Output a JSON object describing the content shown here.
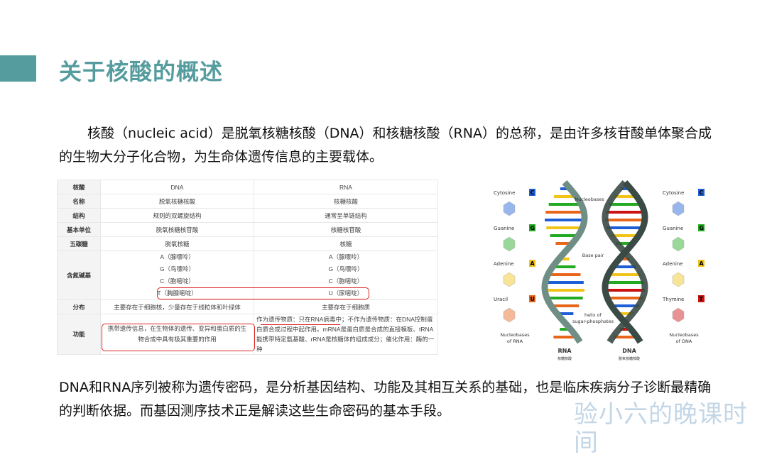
{
  "title": "关于核酸的概述",
  "intro": "核酸（nucleic acid）是脱氧核糖核酸（DNA）和核糖核酸（RNA）的总称，是由许多核苷酸单体聚合成的生物大分子化合物，为生命体遗传信息的主要载体。",
  "conclusion": "DNA和RNA序列被称为遗传密码，是分析基因结构、功能及其相互关系的基础，也是临床疾病分子诊断最精确的判断依据。而基因测序技术正是解读这些生命密码的基本手段。",
  "watermark": "验小六的晚课时间",
  "table": {
    "rows": [
      {
        "label": "核酸",
        "dna": "DNA",
        "rna": "RNA"
      },
      {
        "label": "名称",
        "dna": "脱氧核糖核酸",
        "rna": "核糖核酸"
      },
      {
        "label": "结构",
        "dna": "规则的双螺旋结构",
        "rna": "通常呈单链结构"
      },
      {
        "label": "基本单位",
        "dna": "脱氧核糖核苷酸",
        "rna": "核糖核苷酸"
      },
      {
        "label": "五碳糖",
        "dna": "脱氧核糖",
        "rna": "核糖"
      }
    ],
    "bases": {
      "label": "含氮碱基",
      "dna": [
        "A（腺嘌呤）",
        "G（鸟嘌呤）",
        "C（胞嘧啶）",
        "T（胸腺嘧啶）"
      ],
      "rna": [
        "A（腺嘌呤）",
        "G（鸟嘌呤）",
        "C（胞嘧啶）",
        "U（尿嘧啶）"
      ]
    },
    "distribution": {
      "label": "分布",
      "dna": "主要存在于细胞核，少量存在于线粒体和叶绿体",
      "rna": "主要存在于细胞质"
    },
    "function": {
      "label": "功能",
      "dna": "携带遗传信息，在生物体的遗传、变异和蛋白质的生物合成中具有极其重要的作用",
      "rna": "作为遗传物质：只在RNA病毒中；不作为遗传物质：在DNA控制蛋白质合成过程中起作用。mRNA是蛋白质是合成的直接模板、tRNA能携带特定氨基酸、rRNA是核糖体的组成成分；催化作用：酶的一种"
    }
  },
  "diagram": {
    "left_bases": [
      {
        "name": "Cytosine",
        "letter": "C",
        "color": "#1f5fd6"
      },
      {
        "name": "Guanine",
        "letter": "G",
        "color": "#22aa22"
      },
      {
        "name": "Adenine",
        "letter": "A",
        "color": "#f0c419"
      },
      {
        "name": "Uracil",
        "letter": "U",
        "color": "#e8661a"
      }
    ],
    "right_bases": [
      {
        "name": "Cytosine",
        "letter": "C",
        "color": "#1f5fd6"
      },
      {
        "name": "Guanine",
        "letter": "G",
        "color": "#22aa22"
      },
      {
        "name": "Adenine",
        "letter": "A",
        "color": "#f0c419"
      },
      {
        "name": "Thymine",
        "letter": "T",
        "color": "#cc1111"
      }
    ],
    "labels": {
      "nucleobases": "Nucleobases",
      "base_pair": "Base pair",
      "helix1": "helix of",
      "helix2": "sugar-phosphates",
      "rna_caption1": "Nucleobases",
      "rna_caption2": "of RNA",
      "dna_caption1": "Nucleobases",
      "dna_caption2": "of DNA",
      "rna": "RNA",
      "rna_cn": "核糖核酸",
      "dna": "DNA",
      "dna_cn": "脱氧核糖核酸"
    }
  }
}
